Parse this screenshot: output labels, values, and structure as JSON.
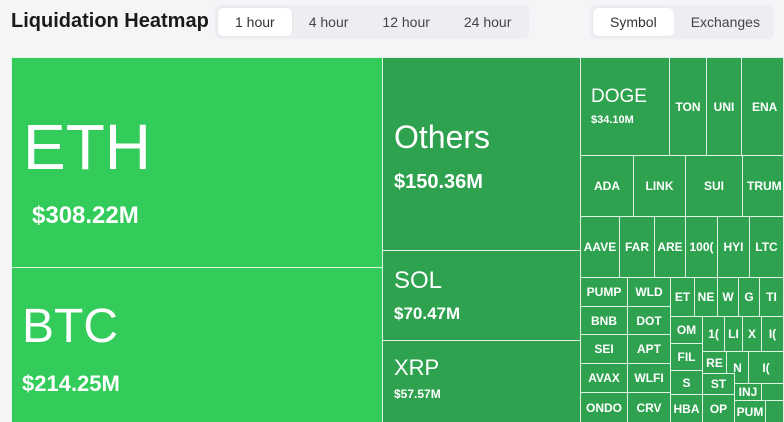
{
  "header": {
    "title": "Liquidation Heatmap",
    "time_tabs": [
      "1 hour",
      "4 hour",
      "12 hour",
      "24 hour"
    ],
    "time_active": "1 hour",
    "view_tabs": [
      "Symbol",
      "Exchanges"
    ],
    "view_active": "Symbol"
  },
  "colors": {
    "bright_green": "#33cb5a",
    "dark_green": "#2ea24f"
  },
  "tiles": {
    "eth": {
      "symbol": "ETH",
      "value": "$308.22M"
    },
    "btc": {
      "symbol": "BTC",
      "value": "$214.25M"
    },
    "others": {
      "symbol": "Others",
      "value": "$150.36M"
    },
    "sol": {
      "symbol": "SOL",
      "value": "$70.47M"
    },
    "xrp": {
      "symbol": "XRP",
      "value": "$57.57M"
    },
    "doge": {
      "symbol": "DOGE",
      "value": "$34.10M"
    }
  },
  "small_tiles": {
    "ton": "TON",
    "uni": "UNI",
    "ena": "ENA",
    "ada": "ADA",
    "link": "LINK",
    "sui": "SUI",
    "trump": "TRUM",
    "aave": "AAVE",
    "fart": "FAR",
    "arb": "ARE",
    "k1000": "100(",
    "hype": "HYI",
    "ltc": "LTC",
    "pump": "PUMP",
    "wld": "WLD",
    "et": "ET",
    "ne": "NE",
    "w": "W",
    "g": "G",
    "t": "TI",
    "bnb": "BNB",
    "dot": "DOT",
    "om": "OM",
    "i1": "1(",
    "li": "LI",
    "x": "X",
    "i2": "I(",
    "sei": "SEI",
    "apt": "APT",
    "fil": "FIL",
    "re": "RE",
    "n": "N",
    "i3": "I(",
    "avax": "AVAX",
    "wlfi": "WLFI",
    "s": "S",
    "st": "ST",
    "inj": "INJ",
    "ondo": "ONDO",
    "crv": "CRV",
    "hba": "HBA",
    "op": "OP",
    "pum": "PUM"
  }
}
